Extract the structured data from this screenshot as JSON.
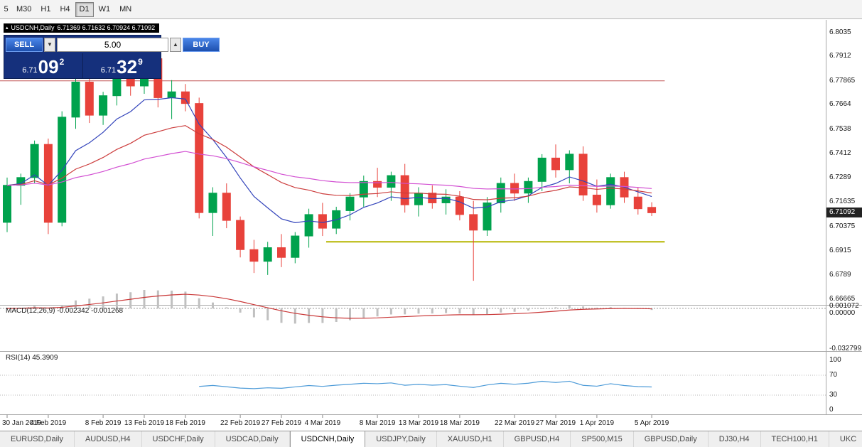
{
  "icons": {
    "collapse": "▴",
    "spin_up": "▲",
    "spin_down": "▼"
  },
  "toolbar": {
    "timeframes": [
      {
        "label": "5",
        "active": false
      },
      {
        "label": "M30",
        "active": false
      },
      {
        "label": "H1",
        "active": false
      },
      {
        "label": "H4",
        "active": false
      },
      {
        "label": "D1",
        "active": true
      },
      {
        "label": "W1",
        "active": false
      },
      {
        "label": "MN",
        "active": false
      }
    ]
  },
  "chart_header": {
    "title": "USDCNH,Daily",
    "ohlc": "6.71369 6.71632 6.70924 6.71092"
  },
  "trade_panel": {
    "sell_label": "SELL",
    "buy_label": "BUY",
    "volume": "5.00",
    "sell_price_small": "6.71",
    "sell_price_big": "09",
    "sell_price_sup": "2",
    "buy_price_small": "6.71",
    "buy_price_big": "32",
    "buy_price_sup": "9"
  },
  "price_scale": {
    "labels": [
      "6.8035",
      "6.7912",
      "6.77865",
      "6.7664",
      "6.7538",
      "6.7412",
      "6.7289",
      "6.71635",
      "6.70375",
      "6.6915",
      "6.6789",
      "6.66665"
    ],
    "current": "6.71092"
  },
  "macd_panel": {
    "label": "MACD(12,26,9) -0.002342 -0.001268",
    "axis_top": "0.001072",
    "axis_zero": "0.00000",
    "axis_bottom": "-0.032799"
  },
  "rsi_panel": {
    "label": "RSI(14) 45.3909",
    "axis": [
      "100",
      "70",
      "30",
      "0"
    ]
  },
  "x_axis": {
    "labels": [
      {
        "text": "30 Jan 2019",
        "index": 0
      },
      {
        "text": "4 Feb 2019",
        "index": 3
      },
      {
        "text": "8 Feb 2019",
        "index": 7
      },
      {
        "text": "13 Feb 2019",
        "index": 10
      },
      {
        "text": "18 Feb 2019",
        "index": 13
      },
      {
        "text": "22 Feb 2019",
        "index": 17
      },
      {
        "text": "27 Feb 2019",
        "index": 20
      },
      {
        "text": "4 Mar 2019",
        "index": 23
      },
      {
        "text": "8 Mar 2019",
        "index": 27
      },
      {
        "text": "13 Mar 2019",
        "index": 30
      },
      {
        "text": "18 Mar 2019",
        "index": 33
      },
      {
        "text": "22 Mar 2019",
        "index": 37
      },
      {
        "text": "27 Mar 2019",
        "index": 40
      },
      {
        "text": "1 Apr 2019",
        "index": 43
      },
      {
        "text": "5 Apr 2019",
        "index": 47
      }
    ]
  },
  "tabs": [
    {
      "label": "EURUSD,Daily",
      "active": false
    },
    {
      "label": "AUDUSD,H4",
      "active": false
    },
    {
      "label": "USDCHF,Daily",
      "active": false
    },
    {
      "label": "USDCAD,Daily",
      "active": false
    },
    {
      "label": "USDCNH,Daily",
      "active": true
    },
    {
      "label": "USDJPY,Daily",
      "active": false
    },
    {
      "label": "XAUUSD,H1",
      "active": false
    },
    {
      "label": "GBPUSD,H4",
      "active": false
    },
    {
      "label": "SP500,M15",
      "active": false
    },
    {
      "label": "GBPUSD,Daily",
      "active": false
    },
    {
      "label": "DJ30,H4",
      "active": false
    },
    {
      "label": "TECH100,H1",
      "active": false
    },
    {
      "label": "UKC",
      "active": false
    }
  ],
  "chart_data": {
    "type": "candlestick",
    "symbol": "USDCNH",
    "timeframe": "Daily",
    "title": "USDCNH,Daily",
    "ohlc_current": {
      "open": 6.71369,
      "high": 6.71632,
      "low": 6.70924,
      "close": 6.71092
    },
    "ylim": [
      6.664,
      6.807
    ],
    "colors": {
      "up": "#00a24d",
      "down": "#e8423b"
    },
    "candles": [
      {
        "t": "30 Jan",
        "o": 6.706,
        "h": 6.729,
        "l": 6.701,
        "c": 6.725
      },
      {
        "t": "31 Jan",
        "o": 6.725,
        "h": 6.731,
        "l": 6.715,
        "c": 6.729
      },
      {
        "t": "1 Feb",
        "o": 6.729,
        "h": 6.748,
        "l": 6.726,
        "c": 6.746
      },
      {
        "t": "4 Feb",
        "o": 6.746,
        "h": 6.749,
        "l": 6.7,
        "c": 6.706
      },
      {
        "t": "5 Feb",
        "o": 6.706,
        "h": 6.763,
        "l": 6.704,
        "c": 6.76
      },
      {
        "t": "6 Feb",
        "o": 6.76,
        "h": 6.781,
        "l": 6.754,
        "c": 6.778
      },
      {
        "t": "7 Feb",
        "o": 6.778,
        "h": 6.783,
        "l": 6.757,
        "c": 6.761
      },
      {
        "t": "8 Feb",
        "o": 6.761,
        "h": 6.773,
        "l": 6.756,
        "c": 6.771
      },
      {
        "t": "11 Feb",
        "o": 6.771,
        "h": 6.785,
        "l": 6.766,
        "c": 6.783
      },
      {
        "t": "12 Feb",
        "o": 6.783,
        "h": 6.787,
        "l": 6.771,
        "c": 6.776
      },
      {
        "t": "13 Feb",
        "o": 6.776,
        "h": 6.793,
        "l": 6.772,
        "c": 6.79
      },
      {
        "t": "14 Feb",
        "o": 6.79,
        "h": 6.795,
        "l": 6.765,
        "c": 6.77
      },
      {
        "t": "15 Feb",
        "o": 6.77,
        "h": 6.779,
        "l": 6.759,
        "c": 6.773
      },
      {
        "t": "18 Feb",
        "o": 6.773,
        "h": 6.777,
        "l": 6.763,
        "c": 6.767
      },
      {
        "t": "19 Feb",
        "o": 6.767,
        "h": 6.77,
        "l": 6.708,
        "c": 6.711
      },
      {
        "t": "20 Feb",
        "o": 6.711,
        "h": 6.724,
        "l": 6.699,
        "c": 6.721
      },
      {
        "t": "21 Feb",
        "o": 6.721,
        "h": 6.726,
        "l": 6.703,
        "c": 6.707
      },
      {
        "t": "22 Feb",
        "o": 6.707,
        "h": 6.709,
        "l": 6.688,
        "c": 6.692
      },
      {
        "t": "25 Feb",
        "o": 6.692,
        "h": 6.697,
        "l": 6.68,
        "c": 6.686
      },
      {
        "t": "26 Feb",
        "o": 6.686,
        "h": 6.696,
        "l": 6.679,
        "c": 6.693
      },
      {
        "t": "27 Feb",
        "o": 6.693,
        "h": 6.7,
        "l": 6.683,
        "c": 6.688
      },
      {
        "t": "28 Feb",
        "o": 6.688,
        "h": 6.701,
        "l": 6.685,
        "c": 6.699
      },
      {
        "t": "1 Mar",
        "o": 6.699,
        "h": 6.713,
        "l": 6.693,
        "c": 6.71
      },
      {
        "t": "4 Mar",
        "o": 6.71,
        "h": 6.716,
        "l": 6.699,
        "c": 6.703
      },
      {
        "t": "5 Mar",
        "o": 6.703,
        "h": 6.714,
        "l": 6.7,
        "c": 6.712
      },
      {
        "t": "6 Mar",
        "o": 6.712,
        "h": 6.721,
        "l": 6.707,
        "c": 6.719
      },
      {
        "t": "7 Mar",
        "o": 6.719,
        "h": 6.73,
        "l": 6.714,
        "c": 6.727
      },
      {
        "t": "8 Mar",
        "o": 6.727,
        "h": 6.734,
        "l": 6.719,
        "c": 6.724
      },
      {
        "t": "11 Mar",
        "o": 6.724,
        "h": 6.732,
        "l": 6.717,
        "c": 6.73
      },
      {
        "t": "12 Mar",
        "o": 6.73,
        "h": 6.736,
        "l": 6.711,
        "c": 6.715
      },
      {
        "t": "13 Mar",
        "o": 6.715,
        "h": 6.724,
        "l": 6.709,
        "c": 6.721
      },
      {
        "t": "14 Mar",
        "o": 6.721,
        "h": 6.725,
        "l": 6.713,
        "c": 6.716
      },
      {
        "t": "15 Mar",
        "o": 6.716,
        "h": 6.723,
        "l": 6.71,
        "c": 6.719
      },
      {
        "t": "18 Mar",
        "o": 6.719,
        "h": 6.722,
        "l": 6.707,
        "c": 6.71
      },
      {
        "t": "19 Mar",
        "o": 6.71,
        "h": 6.717,
        "l": 6.676,
        "c": 6.702
      },
      {
        "t": "20 Mar",
        "o": 6.702,
        "h": 6.719,
        "l": 6.699,
        "c": 6.716
      },
      {
        "t": "21 Mar",
        "o": 6.716,
        "h": 6.729,
        "l": 6.711,
        "c": 6.726
      },
      {
        "t": "22 Mar",
        "o": 6.726,
        "h": 6.731,
        "l": 6.717,
        "c": 6.721
      },
      {
        "t": "25 Mar",
        "o": 6.721,
        "h": 6.729,
        "l": 6.716,
        "c": 6.727
      },
      {
        "t": "26 Mar",
        "o": 6.727,
        "h": 6.741,
        "l": 6.722,
        "c": 6.739
      },
      {
        "t": "27 Mar",
        "o": 6.739,
        "h": 6.746,
        "l": 6.729,
        "c": 6.733
      },
      {
        "t": "28 Mar",
        "o": 6.733,
        "h": 6.743,
        "l": 6.726,
        "c": 6.741
      },
      {
        "t": "29 Mar",
        "o": 6.741,
        "h": 6.745,
        "l": 6.717,
        "c": 6.72
      },
      {
        "t": "1 Apr",
        "o": 6.72,
        "h": 6.728,
        "l": 6.711,
        "c": 6.715
      },
      {
        "t": "2 Apr",
        "o": 6.715,
        "h": 6.731,
        "l": 6.713,
        "c": 6.729
      },
      {
        "t": "3 Apr",
        "o": 6.729,
        "h": 6.732,
        "l": 6.716,
        "c": 6.719
      },
      {
        "t": "4 Apr",
        "o": 6.719,
        "h": 6.724,
        "l": 6.71,
        "c": 6.713
      },
      {
        "t": "5 Apr",
        "o": 6.71369,
        "h": 6.71632,
        "l": 6.70924,
        "c": 6.71092
      }
    ],
    "moving_averages": [
      {
        "period": 8,
        "method": "ema",
        "color": "#3344bb"
      },
      {
        "period": 20,
        "method": "ema",
        "color": "#cc3c3c"
      },
      {
        "period": 45,
        "method": "ema",
        "color": "#d24fd2"
      }
    ],
    "hlines": [
      {
        "price": 6.77865,
        "color": "#c25656",
        "width": 1,
        "start_frac": 0.0,
        "end_frac": 0.805
      },
      {
        "price": 6.696,
        "color": "#b6b600",
        "width": 2,
        "start_frac": 0.395,
        "end_frac": 0.805
      }
    ],
    "macd": {
      "fast": 12,
      "slow": 26,
      "signal": 9,
      "value": -0.002342,
      "signal_value": -0.001268,
      "axis_max": 0.001072,
      "axis_min": -0.032799,
      "histogram_color": "#c0c0c0",
      "line_color": "#c93636"
    },
    "rsi": {
      "period": 14,
      "value": 45.3909,
      "levels": [
        70,
        30
      ],
      "color": "#4d9bd8",
      "axis_max": 100,
      "axis_min": 0
    }
  }
}
